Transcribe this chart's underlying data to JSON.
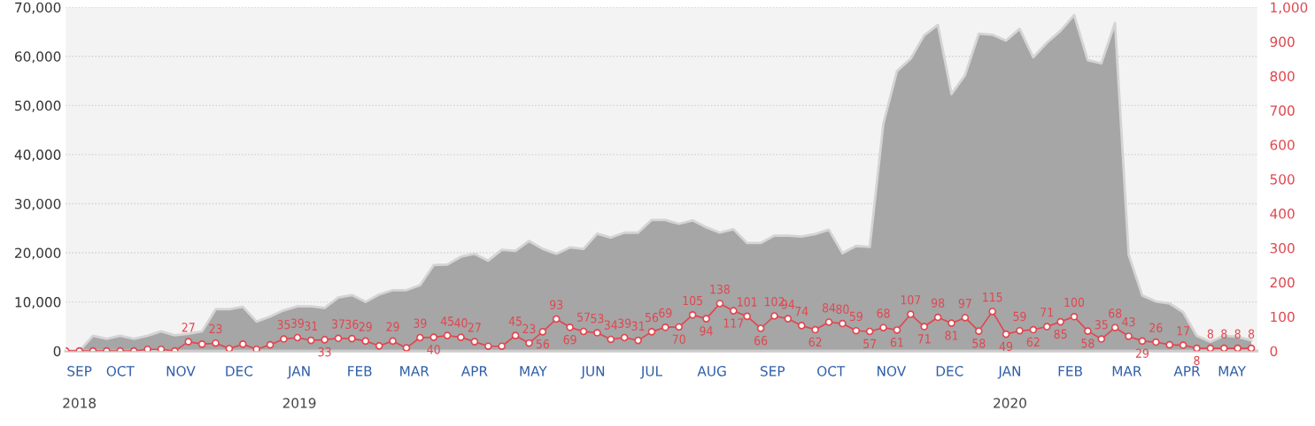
{
  "chart_data": {
    "type": "area",
    "x": [
      "2018-09-17",
      "2018-09-24",
      "2018-10-01",
      "2018-10-08",
      "2018-10-15",
      "2018-10-22",
      "2018-10-29",
      "2018-11-05",
      "2018-11-12",
      "2018-11-19",
      "2018-11-26",
      "2018-12-03",
      "2018-12-10",
      "2018-12-17",
      "2018-12-24",
      "2018-12-31",
      "2019-01-07",
      "2019-01-14",
      "2019-01-21",
      "2019-01-28",
      "2019-02-04",
      "2019-02-11",
      "2019-02-18",
      "2019-02-25",
      "2019-03-04",
      "2019-03-11",
      "2019-03-18",
      "2019-03-25",
      "2019-04-01",
      "2019-04-08",
      "2019-04-15",
      "2019-04-22",
      "2019-04-29",
      "2019-05-06",
      "2019-05-13",
      "2019-05-20",
      "2019-05-27",
      "2019-06-03",
      "2019-06-10",
      "2019-06-17",
      "2019-06-24",
      "2019-07-01",
      "2019-07-08",
      "2019-07-15",
      "2019-07-22",
      "2019-07-29",
      "2019-08-05",
      "2019-08-12",
      "2019-08-19",
      "2019-08-26",
      "2019-09-02",
      "2019-09-09",
      "2019-09-16",
      "2019-09-23",
      "2019-09-30",
      "2019-10-07",
      "2019-10-14",
      "2019-10-21",
      "2019-10-28",
      "2019-11-04",
      "2019-11-11",
      "2019-11-18",
      "2019-11-25",
      "2019-12-02",
      "2019-12-09",
      "2019-12-16",
      "2019-12-23",
      "2019-12-30",
      "2020-01-06",
      "2020-01-13",
      "2020-01-20",
      "2020-01-27",
      "2020-02-03",
      "2020-02-10",
      "2020-02-17",
      "2020-02-24",
      "2020-03-02",
      "2020-03-09",
      "2020-03-16",
      "2020-03-23",
      "2020-03-30",
      "2020-04-06",
      "2020-04-13",
      "2020-04-20",
      "2020-04-27",
      "2020-05-04",
      "2020-05-11",
      "2020-05-18"
    ],
    "series": [
      {
        "color": "#a6a6a6",
        "values": [
          0,
          0,
          3100,
          2500,
          3100,
          2500,
          3100,
          4000,
          3200,
          3500,
          4000,
          8500,
          8500,
          9000,
          6000,
          7000,
          8300,
          9100,
          9100,
          8800,
          10900,
          11400,
          10000,
          11500,
          12400,
          12400,
          13400,
          17500,
          17600,
          19200,
          19800,
          18400,
          20600,
          20400,
          22400,
          20800,
          19800,
          21100,
          20800,
          23900,
          23100,
          24100,
          24100,
          26700,
          26700,
          25900,
          26600,
          25200,
          24100,
          24800,
          22000,
          22000,
          23500,
          23500,
          23300,
          23800,
          24700,
          19900,
          21400,
          21200,
          46300,
          57000,
          59500,
          64300,
          66400,
          52300,
          56200,
          64600,
          64400,
          63200,
          65600,
          59800,
          62800,
          65200,
          68400,
          59200,
          58600,
          66800,
          19600,
          11300,
          10100,
          9700,
          7900,
          3100,
          1900,
          3100,
          2900,
          2200
        ]
      },
      {
        "type": "line",
        "axis": "y2",
        "color": "#e0474f",
        "marker": "circle",
        "values": [
          0,
          0,
          0,
          0,
          0,
          0,
          5,
          5,
          0,
          27,
          20,
          23,
          7,
          20,
          5,
          18,
          35,
          39,
          31,
          33,
          37,
          36,
          29,
          15,
          29,
          9,
          39,
          40,
          45,
          40,
          27,
          14,
          14,
          45,
          23,
          56,
          93,
          69,
          57,
          53,
          34,
          39,
          31,
          56,
          69,
          70,
          105,
          94,
          138,
          117,
          101,
          66,
          102,
          94,
          74,
          62,
          84,
          80,
          59,
          57,
          68,
          61,
          107,
          71,
          98,
          81,
          97,
          58,
          115,
          49,
          59,
          62,
          71,
          85,
          100,
          58,
          35,
          68,
          43,
          29,
          26,
          18,
          17,
          8,
          8,
          8,
          8,
          8
        ],
        "value_labels": [
          null,
          null,
          null,
          null,
          null,
          null,
          null,
          null,
          null,
          "27",
          null,
          "23",
          null,
          null,
          null,
          null,
          "35",
          "39",
          "31",
          "33",
          "37",
          "36",
          "29",
          null,
          "29",
          null,
          "39",
          "40",
          "45",
          "40",
          "27",
          null,
          null,
          "45",
          "23",
          "56",
          "93",
          "69",
          "57",
          "53",
          "34",
          "39",
          "31",
          "56",
          "69",
          "70",
          "105",
          "94",
          "138",
          "117",
          "101",
          "66",
          "102",
          "94",
          "74",
          "62",
          "84",
          "80",
          "59",
          "57",
          "68",
          "61",
          "107",
          "71",
          "98",
          "81",
          "97",
          "58",
          "115",
          "49",
          "59",
          "62",
          "71",
          "85",
          "100",
          "58",
          "35",
          "68",
          "43",
          "29",
          "26",
          null,
          "17",
          "8",
          "8",
          "8",
          "8",
          "8"
        ]
      }
    ],
    "xlim": [
      "2018-09-17",
      "2020-05-21"
    ],
    "x2lim": [
      "2018-09-17",
      "2020-05-21"
    ],
    "x2ticks": [
      {
        "value": "2018-09-24",
        "label": "2018"
      },
      {
        "value": "2019-01-15",
        "label": "2019"
      },
      {
        "value": "2020-01-15",
        "label": "2020"
      }
    ],
    "xticks": [
      {
        "value": "2018-09-24",
        "label": "SEP"
      },
      {
        "value": "2018-10-15",
        "label": "OCT"
      },
      {
        "value": "2018-11-15",
        "label": "NOV"
      },
      {
        "value": "2018-12-15",
        "label": "DEC"
      },
      {
        "value": "2019-01-15",
        "label": "JAN"
      },
      {
        "value": "2019-02-15",
        "label": "FEB"
      },
      {
        "value": "2019-03-15",
        "label": "MAR"
      },
      {
        "value": "2019-04-15",
        "label": "APR"
      },
      {
        "value": "2019-05-15",
        "label": "MAY"
      },
      {
        "value": "2019-06-15",
        "label": "JUN"
      },
      {
        "value": "2019-07-15",
        "label": "JUL"
      },
      {
        "value": "2019-08-15",
        "label": "AUG"
      },
      {
        "value": "2019-09-15",
        "label": "SEP"
      },
      {
        "value": "2019-10-15",
        "label": "OCT"
      },
      {
        "value": "2019-11-15",
        "label": "NOV"
      },
      {
        "value": "2019-12-15",
        "label": "DEC"
      },
      {
        "value": "2020-01-15",
        "label": "JAN"
      },
      {
        "value": "2020-02-15",
        "label": "FEB"
      },
      {
        "value": "2020-03-15",
        "label": "MAR"
      },
      {
        "value": "2020-04-15",
        "label": "APR"
      },
      {
        "value": "2020-05-08",
        "label": "MAY"
      }
    ],
    "ylim": [
      0,
      70000
    ],
    "yticks": [
      0,
      {
        "value": 10000,
        "label": "10,000"
      },
      {
        "value": 20000,
        "label": "20,000"
      },
      {
        "value": 30000,
        "label": "30,000"
      },
      {
        "value": 40000,
        "label": "40,000"
      },
      {
        "value": 50000,
        "label": "50,000"
      },
      {
        "value": 60000,
        "label": "60,000"
      },
      {
        "value": 70000,
        "label": "70,000"
      }
    ],
    "y2lim": [
      0,
      1000
    ],
    "y2ticks": [
      0,
      100,
      200,
      300,
      400,
      500,
      600,
      700,
      800,
      900,
      {
        "value": 1000,
        "label": "1,000"
      }
    ],
    "grid": "y",
    "legend": false
  }
}
